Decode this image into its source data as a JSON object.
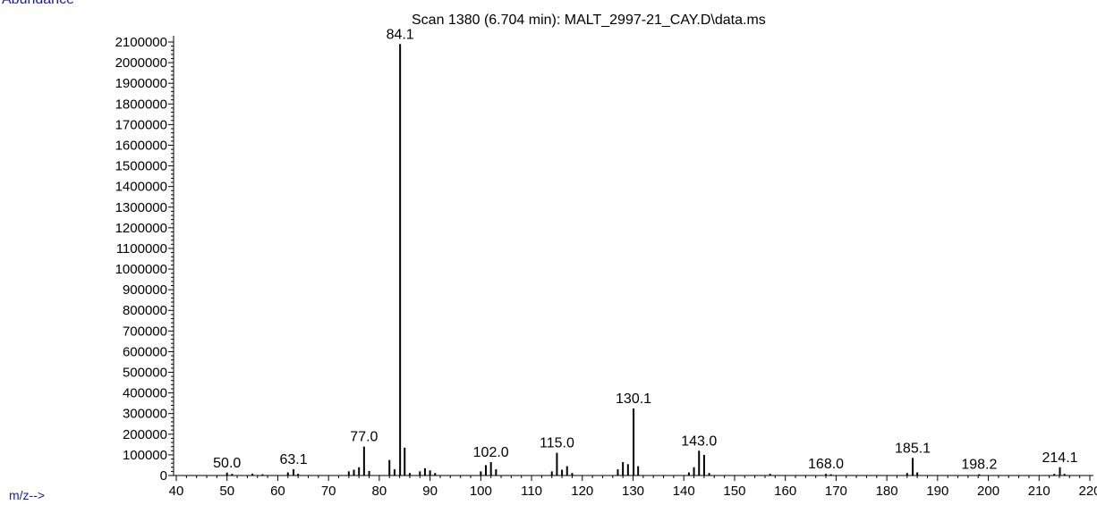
{
  "chart_data": {
    "type": "bar",
    "title": "Scan 1380 (6.704 min): MALT_2997-21_CAY.D\\data.ms",
    "ylabel": "Abundance",
    "xlabel": "m/z-->",
    "xlim": [
      40,
      222
    ],
    "ylim": [
      0,
      2150000
    ],
    "x_ticks": [
      40,
      50,
      60,
      70,
      80,
      90,
      100,
      110,
      120,
      130,
      140,
      150,
      160,
      170,
      180,
      190,
      200,
      210,
      220
    ],
    "y_ticks": [
      0,
      100000,
      200000,
      300000,
      400000,
      500000,
      600000,
      700000,
      800000,
      900000,
      1000000,
      1100000,
      1200000,
      1300000,
      1400000,
      1500000,
      1600000,
      1700000,
      1800000,
      1900000,
      2000000,
      2100000
    ],
    "grid": false,
    "peaks": [
      {
        "mz": 50.0,
        "abundance": 14000,
        "label": "50.0"
      },
      {
        "mz": 51.0,
        "abundance": 8000
      },
      {
        "mz": 55.0,
        "abundance": 9000
      },
      {
        "mz": 57.0,
        "abundance": 6000
      },
      {
        "mz": 62.0,
        "abundance": 15000
      },
      {
        "mz": 63.1,
        "abundance": 30000,
        "label": "63.1"
      },
      {
        "mz": 64.0,
        "abundance": 8000
      },
      {
        "mz": 74.0,
        "abundance": 20000
      },
      {
        "mz": 75.0,
        "abundance": 28000
      },
      {
        "mz": 76.0,
        "abundance": 40000
      },
      {
        "mz": 77.0,
        "abundance": 140000,
        "label": "77.0"
      },
      {
        "mz": 78.0,
        "abundance": 22000
      },
      {
        "mz": 82.0,
        "abundance": 75000
      },
      {
        "mz": 83.0,
        "abundance": 30000
      },
      {
        "mz": 84.1,
        "abundance": 2090000,
        "label": "84.1"
      },
      {
        "mz": 85.0,
        "abundance": 135000
      },
      {
        "mz": 86.0,
        "abundance": 12000
      },
      {
        "mz": 88.0,
        "abundance": 20000
      },
      {
        "mz": 89.0,
        "abundance": 35000
      },
      {
        "mz": 90.0,
        "abundance": 25000
      },
      {
        "mz": 91.0,
        "abundance": 12000
      },
      {
        "mz": 100.0,
        "abundance": 20000
      },
      {
        "mz": 101.0,
        "abundance": 50000
      },
      {
        "mz": 102.0,
        "abundance": 65000,
        "label": "102.0"
      },
      {
        "mz": 103.0,
        "abundance": 30000
      },
      {
        "mz": 114.0,
        "abundance": 20000
      },
      {
        "mz": 115.0,
        "abundance": 110000,
        "label": "115.0"
      },
      {
        "mz": 116.0,
        "abundance": 28000
      },
      {
        "mz": 117.0,
        "abundance": 45000
      },
      {
        "mz": 118.0,
        "abundance": 12000
      },
      {
        "mz": 127.0,
        "abundance": 30000
      },
      {
        "mz": 128.0,
        "abundance": 65000
      },
      {
        "mz": 129.0,
        "abundance": 55000
      },
      {
        "mz": 130.1,
        "abundance": 325000,
        "label": "130.1"
      },
      {
        "mz": 131.0,
        "abundance": 45000
      },
      {
        "mz": 141.0,
        "abundance": 15000
      },
      {
        "mz": 142.0,
        "abundance": 40000
      },
      {
        "mz": 143.0,
        "abundance": 120000,
        "label": "143.0"
      },
      {
        "mz": 144.0,
        "abundance": 100000
      },
      {
        "mz": 145.0,
        "abundance": 12000
      },
      {
        "mz": 157.0,
        "abundance": 8000
      },
      {
        "mz": 168.0,
        "abundance": 8000,
        "label": "168.0"
      },
      {
        "mz": 169.0,
        "abundance": 6000
      },
      {
        "mz": 184.0,
        "abundance": 12000
      },
      {
        "mz": 185.1,
        "abundance": 85000,
        "label": "185.1"
      },
      {
        "mz": 186.0,
        "abundance": 15000
      },
      {
        "mz": 198.2,
        "abundance": 6000,
        "label": "198.2"
      },
      {
        "mz": 213.0,
        "abundance": 8000
      },
      {
        "mz": 214.1,
        "abundance": 40000,
        "label": "214.1"
      },
      {
        "mz": 215.0,
        "abundance": 8000
      }
    ]
  }
}
